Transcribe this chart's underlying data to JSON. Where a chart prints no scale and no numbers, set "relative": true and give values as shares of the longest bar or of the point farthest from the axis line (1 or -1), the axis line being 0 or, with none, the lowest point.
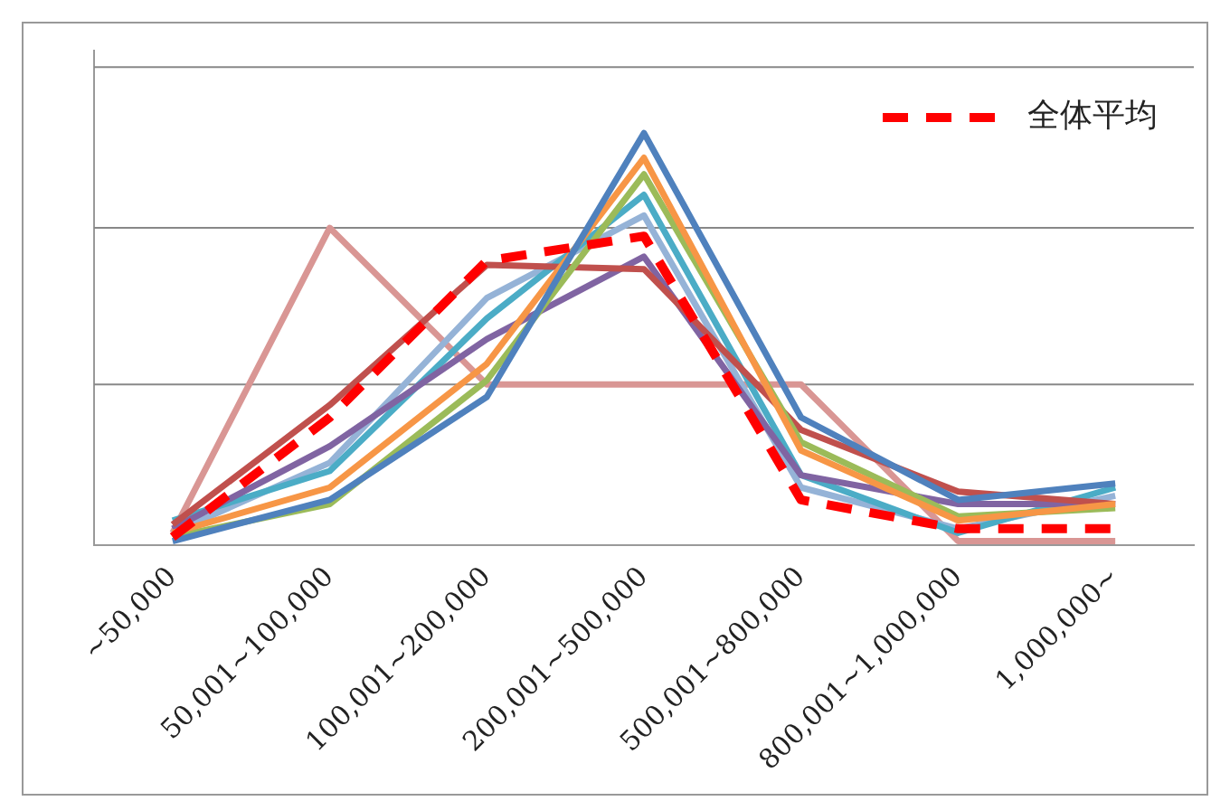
{
  "chart_data": {
    "type": "line",
    "relative": true,
    "legend": "top right",
    "marker": "none",
    "ref_lines": [
      {
        "axis": "y",
        "value": 0.39,
        "color": "#888888"
      },
      {
        "axis": "y",
        "value": 0.77,
        "color": "#888888"
      },
      {
        "axis": "y",
        "value": 1.16,
        "color": "#888888"
      }
    ],
    "categories": [
      "~50,000",
      "50,001~100,000",
      "100,001~200,000",
      "200,001~500,000",
      "500,001~800,000",
      "800,001~1,000,000",
      "1,000,000~"
    ],
    "series": [
      {
        "color": "#4f81bd",
        "values": [
          0.01,
          0.11,
          0.36,
          1.0,
          0.31,
          0.11,
          0.15
        ]
      },
      {
        "color": "#f79646",
        "values": [
          0.03,
          0.14,
          0.44,
          0.94,
          0.23,
          0.06,
          0.1
        ]
      },
      {
        "color": "#9bbb59",
        "values": [
          0.02,
          0.1,
          0.4,
          0.9,
          0.25,
          0.07,
          0.09
        ]
      },
      {
        "color": "#c0504d",
        "values": [
          0.05,
          0.34,
          0.68,
          0.67,
          0.28,
          0.13,
          0.1
        ]
      },
      {
        "color": "#8064a2",
        "values": [
          0.04,
          0.24,
          0.5,
          0.7,
          0.17,
          0.1,
          0.1
        ]
      },
      {
        "color": "#4bacc6",
        "values": [
          0.06,
          0.18,
          0.55,
          0.85,
          0.17,
          0.03,
          0.14
        ]
      },
      {
        "color": "#95b3d7",
        "values": [
          0.03,
          0.2,
          0.6,
          0.8,
          0.14,
          0.04,
          0.12
        ]
      },
      {
        "color": "#d99694",
        "values": [
          0.03,
          0.77,
          0.39,
          0.39,
          0.39,
          0.01,
          0.01
        ]
      },
      {
        "name": "全体平均",
        "color": "#ff0000",
        "line_style": "dashed",
        "values": [
          0.02,
          0.31,
          0.69,
          0.75,
          0.11,
          0.04,
          0.04
        ]
      }
    ]
  }
}
